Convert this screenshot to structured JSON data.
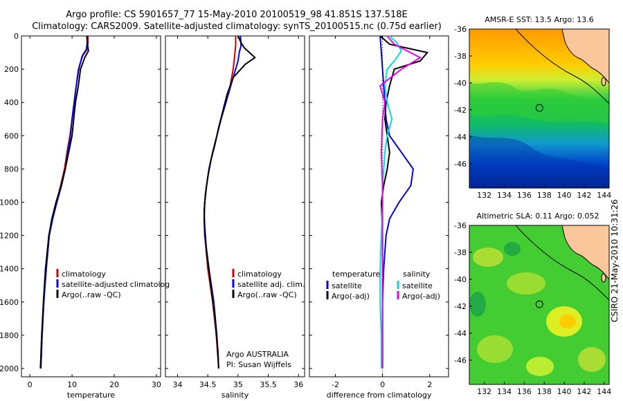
{
  "title_line1": "Argo profile: CS 5901657_77 15-May-2010 20100519_98 41.851S 137.518E",
  "title_line2": "Climatology: CARS2009. Satellite-adjusted climatology: synTS_20100515.nc (0.75d earlier)",
  "side_stamp": "CSIRO 21-May-2010 10:31:26",
  "chart_data": [
    {
      "type": "line",
      "panel": "temperature",
      "xlabel": "temperature",
      "xlim": [
        -2,
        31
      ],
      "xticks": [
        0,
        10,
        20,
        30
      ],
      "ylim": [
        2050,
        0
      ],
      "yticks": [
        0,
        200,
        400,
        600,
        800,
        1000,
        1200,
        1400,
        1600,
        1800,
        2000
      ],
      "legend": [
        "climatology",
        "satellite-adjusted climatolog",
        "Argo(..raw -QC)"
      ],
      "series": [
        {
          "name": "climatology",
          "color": "#cc0000",
          "points": [
            [
              13.8,
              0
            ],
            [
              13.8,
              40
            ],
            [
              13.6,
              80
            ],
            [
              12.5,
              120
            ],
            [
              11.5,
              200
            ],
            [
              11.0,
              300
            ],
            [
              10.5,
              400
            ],
            [
              10.0,
              500
            ],
            [
              9.5,
              600
            ],
            [
              8.8,
              700
            ],
            [
              8.2,
              800
            ],
            [
              7.3,
              900
            ],
            [
              6.3,
              1000
            ],
            [
              5.3,
              1100
            ],
            [
              4.5,
              1200
            ],
            [
              3.8,
              1400
            ],
            [
              3.3,
              1600
            ],
            [
              2.9,
              1800
            ],
            [
              2.6,
              2000
            ]
          ]
        },
        {
          "name": "satellite-adjusted climatolog",
          "color": "#0000dd",
          "points": [
            [
              13.6,
              0
            ],
            [
              13.6,
              40
            ],
            [
              13.4,
              80
            ],
            [
              12.4,
              120
            ],
            [
              11.6,
              200
            ],
            [
              11.0,
              300
            ],
            [
              10.5,
              400
            ],
            [
              10.0,
              500
            ],
            [
              9.6,
              600
            ],
            [
              9.0,
              700
            ],
            [
              8.4,
              800
            ],
            [
              7.5,
              900
            ],
            [
              6.4,
              1000
            ],
            [
              5.4,
              1100
            ],
            [
              4.6,
              1200
            ],
            [
              3.9,
              1400
            ],
            [
              3.3,
              1600
            ],
            [
              2.9,
              1800
            ],
            [
              2.6,
              2000
            ]
          ]
        },
        {
          "name": "Argo(..raw -QC)",
          "color": "#000000",
          "points": [
            [
              13.5,
              0
            ],
            [
              13.6,
              40
            ],
            [
              13.9,
              90
            ],
            [
              13.0,
              130
            ],
            [
              12.0,
              200
            ],
            [
              11.5,
              300
            ],
            [
              10.8,
              400
            ],
            [
              10.4,
              500
            ],
            [
              10.0,
              600
            ],
            [
              9.2,
              700
            ],
            [
              8.4,
              800
            ],
            [
              7.4,
              900
            ],
            [
              6.2,
              1000
            ],
            [
              5.2,
              1100
            ],
            [
              4.5,
              1200
            ],
            [
              3.7,
              1400
            ],
            [
              3.2,
              1600
            ],
            [
              2.8,
              1800
            ],
            [
              2.5,
              2000
            ]
          ]
        }
      ]
    },
    {
      "type": "line",
      "panel": "salinity",
      "xlabel": "salinity",
      "xlim": [
        33.8,
        36.1
      ],
      "xticks": [
        34,
        34.5,
        35,
        35.5,
        36
      ],
      "ylim": [
        2050,
        0
      ],
      "legend": [
        "climatology",
        "satellite adj. clim.",
        "Argo(..raw -QC)"
      ],
      "notes": [
        "Argo AUSTRALIA",
        "PI: Susan Wijffels"
      ],
      "series": [
        {
          "name": "climatology",
          "color": "#cc0000",
          "points": [
            [
              34.96,
              0
            ],
            [
              34.96,
              60
            ],
            [
              34.95,
              100
            ],
            [
              34.92,
              200
            ],
            [
              34.87,
              300
            ],
            [
              34.8,
              400
            ],
            [
              34.72,
              500
            ],
            [
              34.65,
              600
            ],
            [
              34.58,
              700
            ],
            [
              34.52,
              800
            ],
            [
              34.48,
              900
            ],
            [
              34.45,
              1000
            ],
            [
              34.44,
              1100
            ],
            [
              34.45,
              1200
            ],
            [
              34.5,
              1400
            ],
            [
              34.58,
              1600
            ],
            [
              34.64,
              1800
            ],
            [
              34.68,
              2000
            ]
          ]
        },
        {
          "name": "satellite adj. clim.",
          "color": "#0000dd",
          "points": [
            [
              35.04,
              0
            ],
            [
              35.05,
              60
            ],
            [
              35.02,
              100
            ],
            [
              35.0,
              150
            ],
            [
              34.96,
              200
            ],
            [
              34.88,
              300
            ],
            [
              34.8,
              400
            ],
            [
              34.72,
              500
            ],
            [
              34.65,
              600
            ],
            [
              34.58,
              700
            ],
            [
              34.52,
              800
            ],
            [
              34.48,
              900
            ],
            [
              34.45,
              1000
            ],
            [
              34.44,
              1100
            ],
            [
              34.45,
              1200
            ],
            [
              34.52,
              1400
            ],
            [
              34.6,
              1600
            ],
            [
              34.65,
              1800
            ],
            [
              34.68,
              2000
            ]
          ]
        },
        {
          "name": "Argo(..raw -QC)",
          "color": "#000000",
          "points": [
            [
              35.0,
              0
            ],
            [
              35.05,
              40
            ],
            [
              35.1,
              70
            ],
            [
              35.28,
              130
            ],
            [
              35.12,
              170
            ],
            [
              34.92,
              250
            ],
            [
              34.82,
              350
            ],
            [
              34.75,
              450
            ],
            [
              34.68,
              550
            ],
            [
              34.62,
              650
            ],
            [
              34.55,
              750
            ],
            [
              34.5,
              850
            ],
            [
              34.46,
              950
            ],
            [
              34.44,
              1050
            ],
            [
              34.45,
              1150
            ],
            [
              34.48,
              1300
            ],
            [
              34.55,
              1500
            ],
            [
              34.62,
              1700
            ],
            [
              34.67,
              1900
            ],
            [
              34.68,
              2000
            ]
          ]
        }
      ]
    },
    {
      "type": "line",
      "panel": "difference",
      "xlabel": "difference from climatology",
      "xlim": [
        -3.1,
        2.8
      ],
      "xticks": [
        -2,
        0,
        2
      ],
      "ylim": [
        2050,
        0
      ],
      "legend_left_title": "temperature",
      "legend_right_title": "salinity",
      "legend": [
        "satellite",
        "Argo(-adj)",
        "satellite",
        "Argo(-adj)"
      ],
      "series": [
        {
          "name": "temperature satellite",
          "color": "#0000dd",
          "points": [
            [
              -0.1,
              0
            ],
            [
              -0.05,
              100
            ],
            [
              0,
              200
            ],
            [
              0.05,
              300
            ],
            [
              0.1,
              400
            ],
            [
              0.15,
              500
            ],
            [
              0.3,
              600
            ],
            [
              0.8,
              700
            ],
            [
              1.3,
              800
            ],
            [
              1.2,
              900
            ],
            [
              0.7,
              1000
            ],
            [
              0.3,
              1100
            ],
            [
              0.15,
              1200
            ],
            [
              0.05,
              1400
            ],
            [
              0,
              1600
            ],
            [
              0,
              1800
            ],
            [
              0,
              2000
            ]
          ]
        },
        {
          "name": "temperature Argo(-adj)",
          "color": "#000000",
          "points": [
            [
              -0.1,
              0
            ],
            [
              0.3,
              50
            ],
            [
              1.9,
              100
            ],
            [
              1.6,
              150
            ],
            [
              0.5,
              200
            ],
            [
              0.3,
              300
            ],
            [
              0.15,
              400
            ],
            [
              0.1,
              500
            ],
            [
              0.2,
              600
            ],
            [
              0.3,
              700
            ],
            [
              0.2,
              800
            ],
            [
              0.05,
              900
            ],
            [
              -0.05,
              1000
            ],
            [
              0,
              1200
            ],
            [
              0,
              1400
            ],
            [
              0,
              1600
            ],
            [
              0,
              1800
            ],
            [
              0,
              2000
            ]
          ]
        },
        {
          "name": "salinity satellite",
          "color": "#00dddd",
          "points": [
            [
              0.3,
              0
            ],
            [
              0.6,
              40
            ],
            [
              0.8,
              90
            ],
            [
              0.5,
              150
            ],
            [
              0.2,
              200
            ],
            [
              0.1,
              300
            ],
            [
              0.2,
              400
            ],
            [
              0.4,
              500
            ],
            [
              0.2,
              600
            ],
            [
              0.1,
              700
            ],
            [
              0.05,
              800
            ],
            [
              0,
              900
            ],
            [
              0,
              1000
            ],
            [
              -0.05,
              1200
            ],
            [
              -0.1,
              1400
            ],
            [
              -0.1,
              1600
            ],
            [
              -0.05,
              1800
            ],
            [
              -0.05,
              2000
            ]
          ]
        },
        {
          "name": "salinity Argo(-adj)",
          "color": "#ee00ee",
          "points": [
            [
              0.2,
              0
            ],
            [
              0.5,
              50
            ],
            [
              1.6,
              130
            ],
            [
              0.8,
              200
            ],
            [
              -0.1,
              300
            ],
            [
              0.1,
              400
            ],
            [
              0,
              500
            ],
            [
              -0.05,
              700
            ],
            [
              0,
              900
            ],
            [
              0,
              1200
            ],
            [
              0,
              1400
            ],
            [
              0,
              1600
            ],
            [
              0,
              1800
            ],
            [
              0,
              2000
            ]
          ]
        }
      ]
    },
    {
      "type": "heatmap",
      "panel": "sst-map",
      "title": "AMSR-E SST: 13.5 Argo: 13.6",
      "xticks": [
        132,
        134,
        136,
        138,
        140,
        142,
        144
      ],
      "yticks": [
        -36,
        -38,
        -40,
        -42,
        -44,
        -46
      ],
      "xlim": [
        130.5,
        144.5
      ],
      "ylim": [
        -47.8,
        -36
      ],
      "float_position": {
        "lon": 137.518,
        "lat": -41.851
      },
      "colormap": "jet"
    },
    {
      "type": "heatmap",
      "panel": "sla-map",
      "title": "Altimetric SLA: 0.11 Argo: 0.052",
      "xticks": [
        132,
        134,
        136,
        138,
        140,
        142,
        144
      ],
      "yticks": [
        -36,
        -38,
        -40,
        -42,
        -44,
        -46
      ],
      "xlim": [
        130.5,
        144.5
      ],
      "ylim": [
        -47.8,
        -36
      ],
      "float_position": {
        "lon": 137.518,
        "lat": -41.851
      },
      "colormap": "jet"
    }
  ],
  "colors": {
    "land": "#f9c79a",
    "axis": "#000000"
  }
}
